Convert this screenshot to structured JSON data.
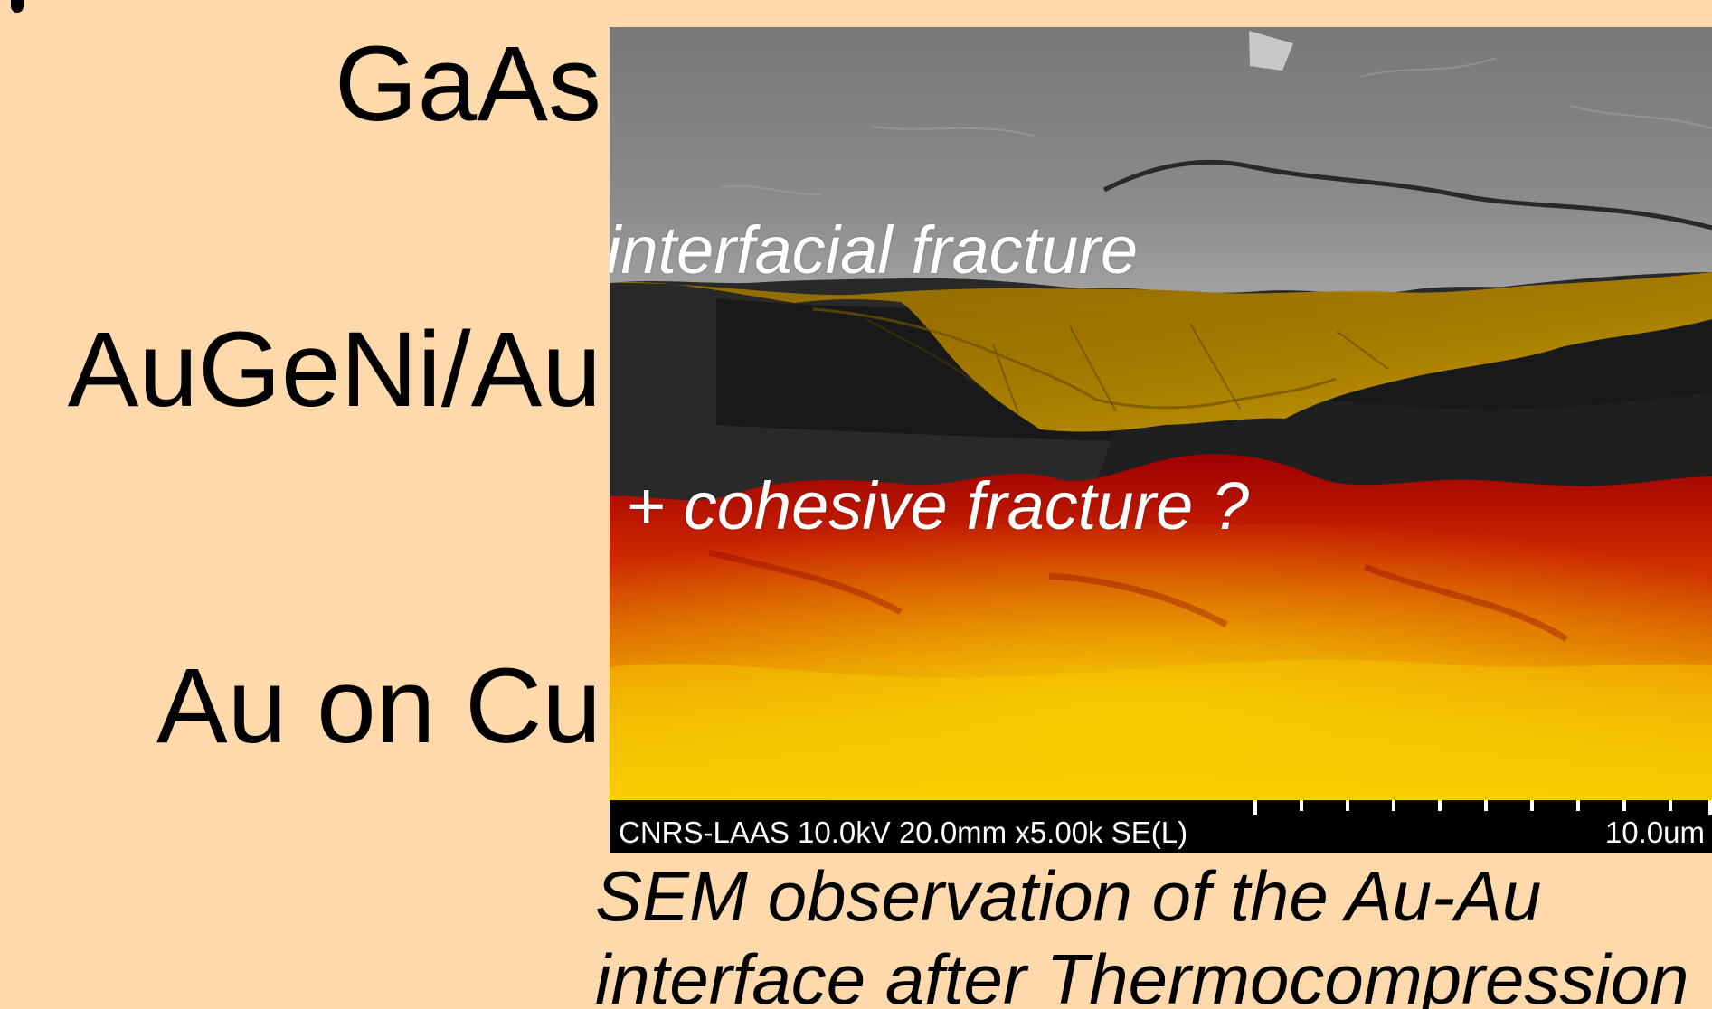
{
  "labels": {
    "gaas": "GaAs",
    "augeni": "AuGeNi/Au",
    "au_on_cu": "Au on Cu"
  },
  "sem": {
    "overlay_interfacial": "interfacial fracture",
    "overlay_cohesive": "+ cohesive fracture ?",
    "info_bar": "CNRS-LAAS 10.0kV 20.0mm x5.00k SE(L)",
    "scale": "10.0um"
  },
  "caption": {
    "line1": "SEM observation of the Au-Au",
    "line2": "interface after Thermocompression"
  },
  "colors": {
    "background": "#fdd9ab",
    "gaas_layer": "#8f8f8f",
    "augeni_layer": "#b88f08",
    "au_cu_layer": "#d83b00",
    "au_cu_highlight": "#f2c300",
    "text": "#000000",
    "overlay_text": "#ffffff"
  }
}
